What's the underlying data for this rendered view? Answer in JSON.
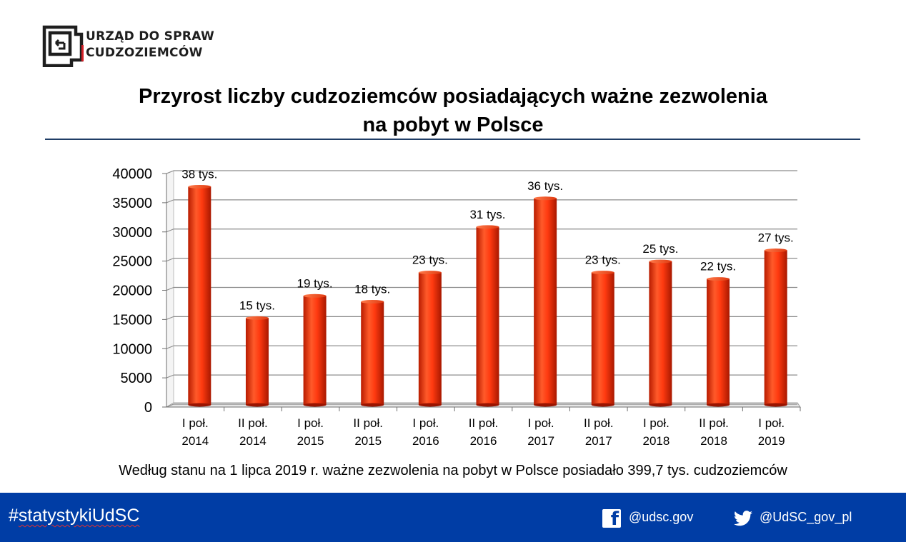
{
  "org": {
    "line1": "URZĄD DO SPRAW",
    "line2": "CUDZOZIEMCÓW"
  },
  "title": {
    "line1": "Przyrost liczby cudzoziemców posiadających ważne zezwolenia",
    "line2": "na pobyt w Polsce"
  },
  "chart_data": {
    "type": "bar",
    "categories": [
      [
        "I poł.",
        "2014"
      ],
      [
        "II poł.",
        "2014"
      ],
      [
        "I poł.",
        "2015"
      ],
      [
        "II poł.",
        "2015"
      ],
      [
        "I poł.",
        "2016"
      ],
      [
        "II poł.",
        "2016"
      ],
      [
        "I poł.",
        "2017"
      ],
      [
        "II poł.",
        "2017"
      ],
      [
        "I poł.",
        "2018"
      ],
      [
        "II poł.",
        "2018"
      ],
      [
        "I poł.",
        "2019"
      ]
    ],
    "values": [
      37500,
      15000,
      18800,
      17800,
      22800,
      30600,
      35500,
      22800,
      24700,
      21700,
      26600
    ],
    "data_labels": [
      "38 tys.",
      "15 tys.",
      "19 tys.",
      "18 tys.",
      "23 tys.",
      "31 tys.",
      "36 tys.",
      "23 tys.",
      "25 tys.",
      "22 tys.",
      "27 tys."
    ],
    "ylim": [
      0,
      40000
    ],
    "yticks": [
      0,
      5000,
      10000,
      15000,
      20000,
      25000,
      30000,
      35000,
      40000
    ],
    "grid": true,
    "bar_color": "#ff4010"
  },
  "note": "Według stanu na 1 lipca 2019 r. ważne zezwolenia na pobyt w Polsce posiadało 399,7 tys. cudzoziemców",
  "footer": {
    "hashtag_prefix": "#",
    "hashtag_main": "statystykiUdSC",
    "facebook": "@udsc.gov",
    "twitter": "@UdSC_gov_pl"
  }
}
